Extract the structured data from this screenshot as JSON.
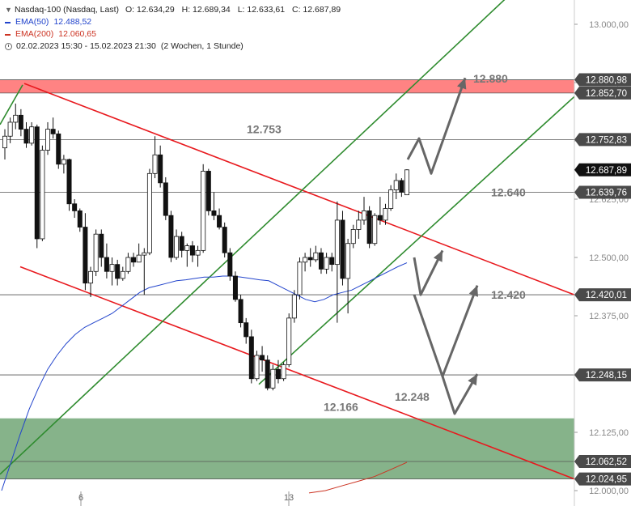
{
  "legend": {
    "title": "Nasdaq-100 (Nasdaq, Last)",
    "open": "O: 12.634,29",
    "high": "H: 12.689,34",
    "low": "L: 12.633,61",
    "close": "C: 12.687,89",
    "ema50_label": "EMA(50)",
    "ema50_value": "12.488,52",
    "ema200_label": "EMA(200)",
    "ema200_value": "12.060,65",
    "range": "02.02.2023 15:30 - 15.02.2023 21:30",
    "interval": "(2 Wochen, 1 Stunde)"
  },
  "colors": {
    "up_candle": "#ffffff",
    "down_candle": "#111111",
    "ema50": "#2244cc",
    "ema200": "#cc3322",
    "trend_red": "#e8191e",
    "trend_green": "#2e8b2e",
    "resistance_zone": "#ff5a5a",
    "support_zone": "#5d9a63",
    "arrows": "#666666",
    "price_tag": "#4a4a4a",
    "current_tag": "#111111"
  },
  "chart_data": {
    "type": "candlestick",
    "instrument": "Nasdaq-100 (Nasdaq, Last)",
    "ylim": [
      12000,
      13050
    ],
    "x_ticks": [
      "6",
      "13"
    ],
    "y_ticks": [
      "13.000,00",
      "12.875,00",
      "12.750,00",
      "12.625,00",
      "12.500,00",
      "12.375,00",
      "12.250,00",
      "12.125,00",
      "12.000,00"
    ],
    "y_tick_values": [
      13000,
      12875,
      12750,
      12625,
      12500,
      12375,
      12250,
      12125,
      12000
    ],
    "candles": [
      {
        "o": 12735,
        "h": 12775,
        "l": 12710,
        "c": 12760
      },
      {
        "o": 12760,
        "h": 12800,
        "l": 12745,
        "c": 12790
      },
      {
        "o": 12790,
        "h": 12830,
        "l": 12775,
        "c": 12805
      },
      {
        "o": 12805,
        "h": 12818,
        "l": 12760,
        "c": 12775
      },
      {
        "o": 12775,
        "h": 12790,
        "l": 12735,
        "c": 12745
      },
      {
        "o": 12745,
        "h": 12790,
        "l": 12740,
        "c": 12780
      },
      {
        "o": 12780,
        "h": 12785,
        "l": 12520,
        "c": 12540
      },
      {
        "o": 12540,
        "h": 12740,
        "l": 12535,
        "c": 12730
      },
      {
        "o": 12730,
        "h": 12790,
        "l": 12720,
        "c": 12775
      },
      {
        "o": 12775,
        "h": 12800,
        "l": 12755,
        "c": 12765
      },
      {
        "o": 12765,
        "h": 12772,
        "l": 12690,
        "c": 12700
      },
      {
        "o": 12700,
        "h": 12720,
        "l": 12680,
        "c": 12710
      },
      {
        "o": 12710,
        "h": 12712,
        "l": 12600,
        "c": 12615
      },
      {
        "o": 12615,
        "h": 12625,
        "l": 12585,
        "c": 12600
      },
      {
        "o": 12600,
        "h": 12605,
        "l": 12555,
        "c": 12565
      },
      {
        "o": 12565,
        "h": 12595,
        "l": 12430,
        "c": 12445
      },
      {
        "o": 12445,
        "h": 12480,
        "l": 12415,
        "c": 12470
      },
      {
        "o": 12470,
        "h": 12560,
        "l": 12460,
        "c": 12550
      },
      {
        "o": 12550,
        "h": 12560,
        "l": 12480,
        "c": 12500
      },
      {
        "o": 12500,
        "h": 12530,
        "l": 12455,
        "c": 12470
      },
      {
        "o": 12470,
        "h": 12500,
        "l": 12440,
        "c": 12485
      },
      {
        "o": 12485,
        "h": 12495,
        "l": 12440,
        "c": 12455
      },
      {
        "o": 12455,
        "h": 12480,
        "l": 12450,
        "c": 12470
      },
      {
        "o": 12470,
        "h": 12510,
        "l": 12465,
        "c": 12500
      },
      {
        "o": 12500,
        "h": 12510,
        "l": 12480,
        "c": 12490
      },
      {
        "o": 12490,
        "h": 12530,
        "l": 12490,
        "c": 12505
      },
      {
        "o": 12505,
        "h": 12520,
        "l": 12420,
        "c": 12510
      },
      {
        "o": 12510,
        "h": 12690,
        "l": 12505,
        "c": 12680
      },
      {
        "o": 12680,
        "h": 12760,
        "l": 12670,
        "c": 12720
      },
      {
        "o": 12720,
        "h": 12740,
        "l": 12650,
        "c": 12660
      },
      {
        "o": 12660,
        "h": 12672,
        "l": 12580,
        "c": 12590
      },
      {
        "o": 12590,
        "h": 12600,
        "l": 12490,
        "c": 12500
      },
      {
        "o": 12500,
        "h": 12560,
        "l": 12495,
        "c": 12545
      },
      {
        "o": 12545,
        "h": 12555,
        "l": 12500,
        "c": 12515
      },
      {
        "o": 12515,
        "h": 12530,
        "l": 12480,
        "c": 12525
      },
      {
        "o": 12525,
        "h": 12535,
        "l": 12490,
        "c": 12505
      },
      {
        "o": 12505,
        "h": 12525,
        "l": 12480,
        "c": 12515
      },
      {
        "o": 12515,
        "h": 12700,
        "l": 12510,
        "c": 12685
      },
      {
        "o": 12685,
        "h": 12690,
        "l": 12590,
        "c": 12600
      },
      {
        "o": 12600,
        "h": 12640,
        "l": 12580,
        "c": 12590
      },
      {
        "o": 12590,
        "h": 12605,
        "l": 12560,
        "c": 12565
      },
      {
        "o": 12565,
        "h": 12575,
        "l": 12500,
        "c": 12510
      },
      {
        "o": 12510,
        "h": 12520,
        "l": 12450,
        "c": 12460
      },
      {
        "o": 12460,
        "h": 12470,
        "l": 12405,
        "c": 12410
      },
      {
        "o": 12410,
        "h": 12420,
        "l": 12350,
        "c": 12360
      },
      {
        "o": 12360,
        "h": 12370,
        "l": 12315,
        "c": 12330
      },
      {
        "o": 12330,
        "h": 12345,
        "l": 12230,
        "c": 12240
      },
      {
        "o": 12240,
        "h": 12300,
        "l": 12235,
        "c": 12290
      },
      {
        "o": 12290,
        "h": 12310,
        "l": 12255,
        "c": 12280
      },
      {
        "o": 12280,
        "h": 12290,
        "l": 12215,
        "c": 12220
      },
      {
        "o": 12220,
        "h": 12270,
        "l": 12215,
        "c": 12260
      },
      {
        "o": 12260,
        "h": 12280,
        "l": 12230,
        "c": 12240
      },
      {
        "o": 12240,
        "h": 12275,
        "l": 12235,
        "c": 12270
      },
      {
        "o": 12270,
        "h": 12380,
        "l": 12265,
        "c": 12370
      },
      {
        "o": 12370,
        "h": 12430,
        "l": 12360,
        "c": 12420
      },
      {
        "o": 12420,
        "h": 12500,
        "l": 12410,
        "c": 12490
      },
      {
        "o": 12490,
        "h": 12510,
        "l": 12470,
        "c": 12500
      },
      {
        "o": 12500,
        "h": 12520,
        "l": 12480,
        "c": 12495
      },
      {
        "o": 12495,
        "h": 12525,
        "l": 12490,
        "c": 12510
      },
      {
        "o": 12510,
        "h": 12520,
        "l": 12465,
        "c": 12475
      },
      {
        "o": 12475,
        "h": 12510,
        "l": 12465,
        "c": 12500
      },
      {
        "o": 12500,
        "h": 12510,
        "l": 12470,
        "c": 12485
      },
      {
        "o": 12485,
        "h": 12620,
        "l": 12360,
        "c": 12580
      },
      {
        "o": 12580,
        "h": 12600,
        "l": 12440,
        "c": 12455
      },
      {
        "o": 12455,
        "h": 12540,
        "l": 12380,
        "c": 12530
      },
      {
        "o": 12530,
        "h": 12570,
        "l": 12520,
        "c": 12560
      },
      {
        "o": 12560,
        "h": 12600,
        "l": 12540,
        "c": 12580
      },
      {
        "o": 12580,
        "h": 12630,
        "l": 12570,
        "c": 12600
      },
      {
        "o": 12600,
        "h": 12610,
        "l": 12520,
        "c": 12530
      },
      {
        "o": 12530,
        "h": 12595,
        "l": 12525,
        "c": 12590
      },
      {
        "o": 12590,
        "h": 12630,
        "l": 12570,
        "c": 12580
      },
      {
        "o": 12580,
        "h": 12615,
        "l": 12570,
        "c": 12605
      },
      {
        "o": 12605,
        "h": 12655,
        "l": 12600,
        "c": 12645
      },
      {
        "o": 12645,
        "h": 12680,
        "l": 12625,
        "c": 12665
      },
      {
        "o": 12665,
        "h": 12670,
        "l": 12630,
        "c": 12640
      },
      {
        "o": 12634.29,
        "h": 12689.34,
        "l": 12633.61,
        "c": 12687.89
      }
    ],
    "ema50": [
      12000,
      12060,
      12120,
      12175,
      12220,
      12260,
      12290,
      12315,
      12335,
      12350,
      12360,
      12370,
      12380,
      12395,
      12410,
      12425,
      12435,
      12440,
      12445,
      12450,
      12452,
      12455,
      12458,
      12458,
      12460,
      12460,
      12458,
      12455,
      12452,
      12450,
      12440,
      12430,
      12420,
      12410,
      12405,
      12410,
      12420,
      12425,
      12430,
      12440,
      12450,
      12460,
      12470,
      12480,
      12488.52
    ],
    "ema200": [
      11995,
      12000,
      12010,
      12020,
      12030,
      12045,
      12060.65
    ],
    "horizontal_levels": [
      {
        "value": 12880.98,
        "label": "12.880,98"
      },
      {
        "value": 12852.7,
        "label": "12.852,70"
      },
      {
        "value": 12752.83,
        "label": "12.752,83"
      },
      {
        "value": 12639.76,
        "label": "12.639,76"
      },
      {
        "value": 12420.01,
        "label": "12.420,01"
      },
      {
        "value": 12248.15,
        "label": "12.248,15"
      },
      {
        "value": 12062.52,
        "label": "12.062,52"
      },
      {
        "value": 12024.95,
        "label": "12.024,95"
      }
    ],
    "current_price": {
      "value": 12687.89,
      "label": "12.687,89"
    },
    "zones": [
      {
        "type": "resistance",
        "from": 12852.7,
        "to": 12880.98
      },
      {
        "type": "support",
        "from": 12024.95,
        "to": 12155
      }
    ],
    "annotations": [
      {
        "text": "12.880",
        "value": 12880
      },
      {
        "text": "12.753",
        "value": 12753
      },
      {
        "text": "12.640",
        "value": 12640
      },
      {
        "text": "12.420",
        "value": 12420
      },
      {
        "text": "12.248",
        "value": 12248
      },
      {
        "text": "12.166",
        "value": 12166
      }
    ]
  }
}
